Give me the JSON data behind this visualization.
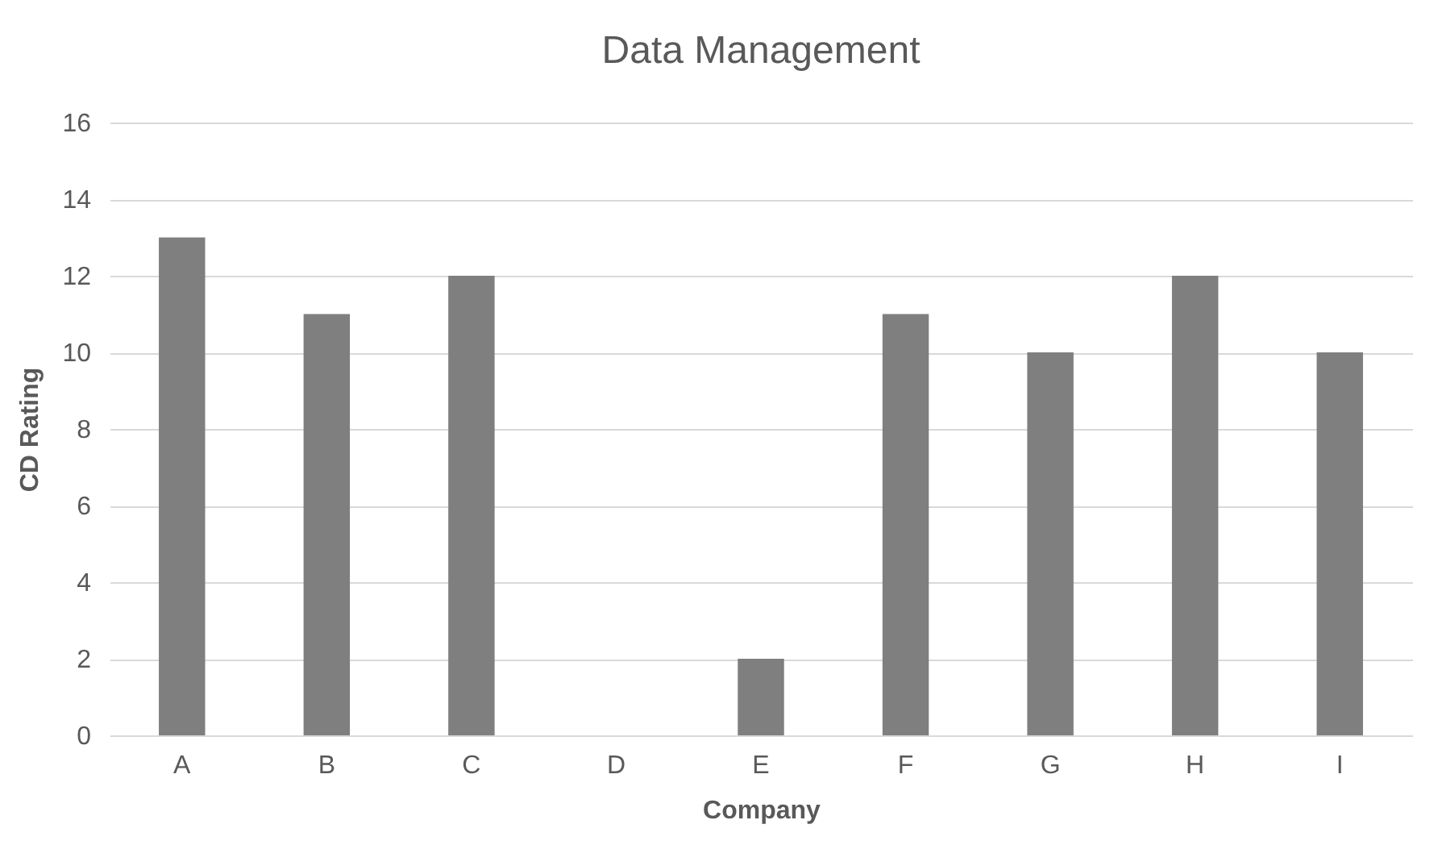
{
  "chart_data": {
    "type": "bar",
    "title": "Data Management",
    "xlabel": "Company",
    "ylabel": "CD Rating",
    "categories": [
      "A",
      "B",
      "C",
      "D",
      "E",
      "F",
      "G",
      "H",
      "I"
    ],
    "values": [
      13,
      11,
      12,
      0,
      2,
      11,
      10,
      12,
      10
    ],
    "color": "#7f7f7f",
    "ylim": [
      0,
      16
    ],
    "yticks": [
      0,
      2,
      4,
      6,
      8,
      10,
      12,
      14,
      16
    ],
    "grid": "y"
  }
}
